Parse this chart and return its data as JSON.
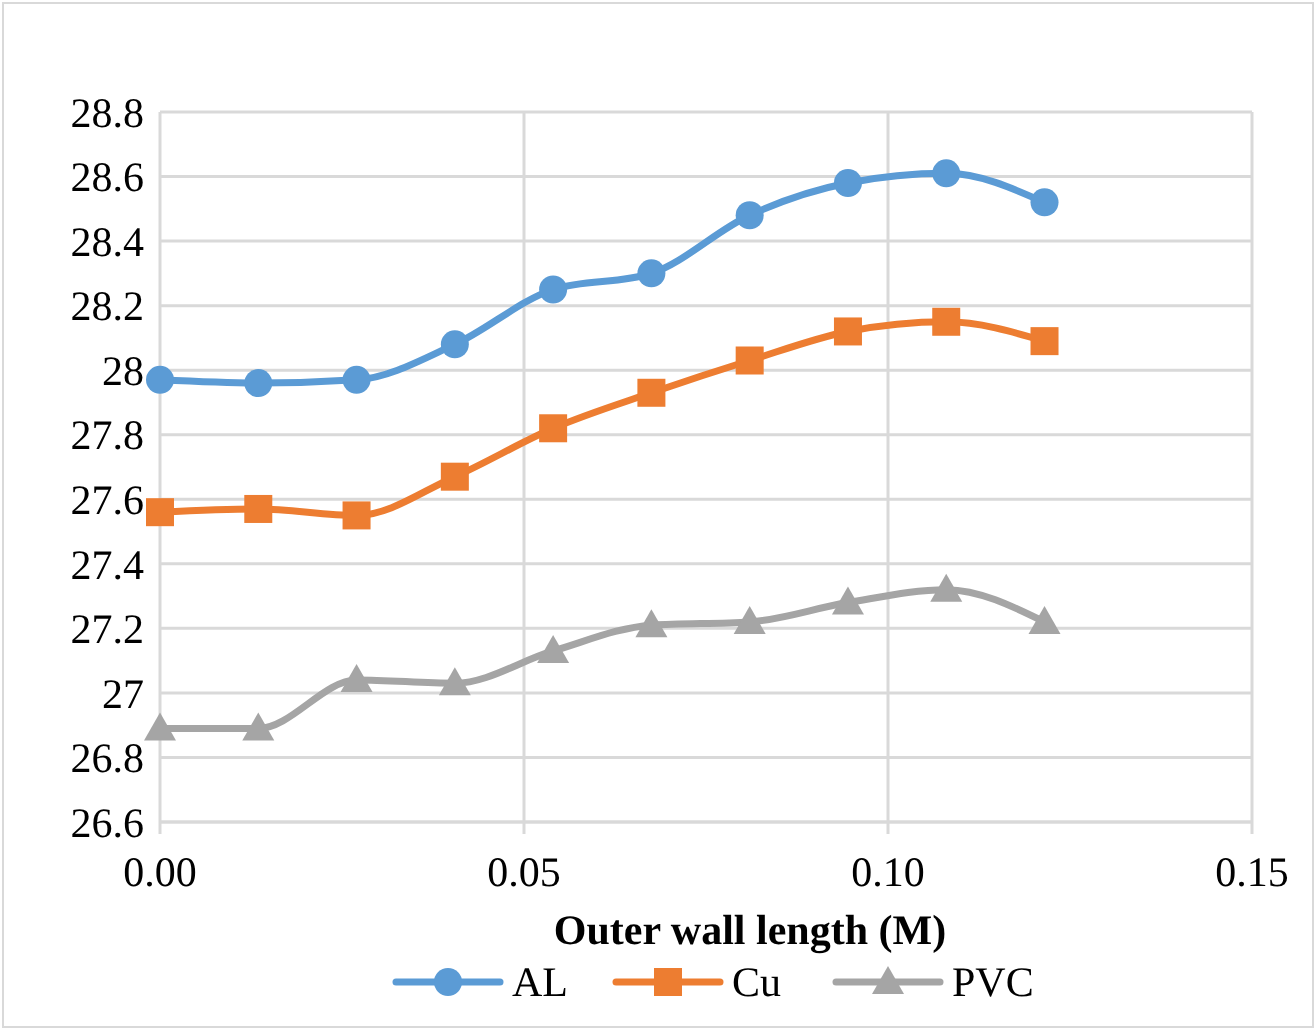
{
  "chart_data": {
    "type": "line",
    "xlabel": "Outer wall length (M)",
    "x": [
      0,
      0.0135,
      0.027,
      0.0405,
      0.054,
      0.0675,
      0.081,
      0.0945,
      0.108,
      0.1215
    ],
    "xlim": [
      0,
      0.15
    ],
    "xticks": [
      {
        "value": 0,
        "label": "0.00"
      },
      {
        "value": 0.05,
        "label": "0.05"
      },
      {
        "value": 0.1,
        "label": "0.10"
      },
      {
        "value": 0.15,
        "label": "0.15"
      }
    ],
    "ylim": [
      26.6,
      28.8
    ],
    "yticks": [
      26.6,
      26.8,
      27,
      27.2,
      27.4,
      27.6,
      27.8,
      28,
      28.2,
      28.4,
      28.6,
      28.8
    ],
    "grid": true,
    "legend": "bottom",
    "series": [
      {
        "name": "AL",
        "color": "#5b9bd5",
        "marker": "circle",
        "values": [
          27.97,
          27.96,
          27.97,
          28.08,
          28.25,
          28.3,
          28.48,
          28.58,
          28.61,
          28.52
        ]
      },
      {
        "name": "Cu",
        "color": "#ed7d31",
        "marker": "square",
        "values": [
          27.56,
          27.57,
          27.55,
          27.67,
          27.82,
          27.93,
          28.03,
          28.12,
          28.15,
          28.09
        ]
      },
      {
        "name": "PVC",
        "color": "#a5a5a5",
        "marker": "triangle",
        "values": [
          26.89,
          26.89,
          27.04,
          27.03,
          27.13,
          27.21,
          27.22,
          27.28,
          27.32,
          27.22
        ]
      }
    ]
  }
}
